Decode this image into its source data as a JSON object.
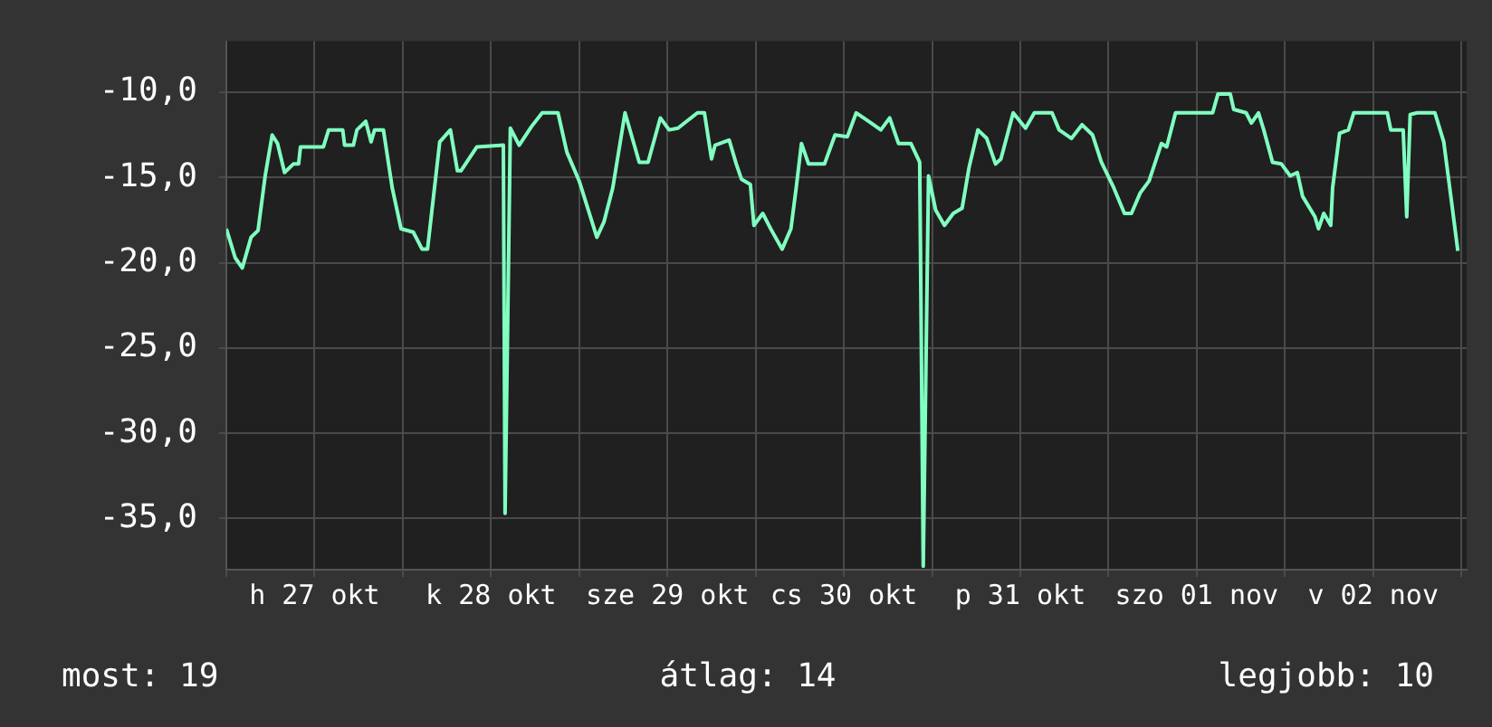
{
  "chart_data": {
    "type": "line",
    "xlim": [
      "--10-27T00:00",
      "--11-03T00:43"
    ],
    "ylim": [
      -38,
      -7
    ],
    "xticks": [
      {
        "value": "--10-27T00:00",
        "label": null
      },
      {
        "value": "--10-27T12:00",
        "label": "h 27 okt"
      },
      {
        "value": "--10-28T00:00",
        "label": null
      },
      {
        "value": "--10-28T12:00",
        "label": "k 28 okt"
      },
      {
        "value": "--10-29T00:00",
        "label": null
      },
      {
        "value": "--10-29T12:00",
        "label": "sze 29 okt"
      },
      {
        "value": "--10-30T00:00",
        "label": null
      },
      {
        "value": "--10-30T12:00",
        "label": "cs 30 okt"
      },
      {
        "value": "--10-31T00:00",
        "label": null
      },
      {
        "value": "--10-31T12:00",
        "label": "p 31 okt"
      },
      {
        "value": "--11-01T00:00",
        "label": null
      },
      {
        "value": "--11-01T12:00",
        "label": "szo 01 nov"
      },
      {
        "value": "--11-02T00:00",
        "label": null
      },
      {
        "value": "--11-02T12:00",
        "label": "v 02 nov"
      },
      {
        "value": "--11-03T00:00",
        "label": null
      }
    ],
    "yticks": [
      {
        "value": -35,
        "label": "-35,0"
      },
      {
        "value": -30,
        "label": "-30,0"
      },
      {
        "value": -25,
        "label": "-25,0"
      },
      {
        "value": -20,
        "label": "-20,0"
      },
      {
        "value": -15,
        "label": "-15,0"
      },
      {
        "value": -10,
        "label": "-10,0"
      }
    ],
    "grid": true,
    "legend": false,
    "marker": "none",
    "line_style": "solid",
    "series": [
      {
        "color": "#80ffc0",
        "x": [
          "--10-27T00:00",
          "--10-27T01:12",
          "--10-27T02:10",
          "--10-27T03:22",
          "--10-27T04:19",
          "--10-27T05:17",
          "--10-27T06:14",
          "--10-27T06:58",
          "--10-27T07:55",
          "--10-27T09:07",
          "--10-27T09:50",
          "--10-27T10:05",
          "--10-27T13:12",
          "--10-27T13:55",
          "--10-27T15:50",
          "--10-27T16:05",
          "--10-27T17:17",
          "--10-27T17:46",
          "--10-27T18:58",
          "--10-27T19:41",
          "--10-27T20:10",
          "--10-27T21:22",
          "--10-27T22:34",
          "--10-27T23:46",
          "--10-28T01:26",
          "--10-28T02:38",
          "--10-28T03:22",
          "--10-28T04:19",
          "--10-28T05:02",
          "--10-28T06:29",
          "--10-28T07:26",
          "--10-28T07:55",
          "--10-28T10:05",
          "--10-28T13:41",
          "--10-28T13:55",
          "--10-28T14:38",
          "--10-28T15:50",
          "--10-28T17:31",
          "--10-28T18:58",
          "--10-28T21:07",
          "--10-28T22:19",
          "--10-29T00:00",
          "--10-29T02:24",
          "--10-29T03:22",
          "--10-29T04:34",
          "--10-29T06:14",
          "--10-29T07:26",
          "--10-29T08:10",
          "--10-29T09:22",
          "--10-29T11:02",
          "--10-29T12:14",
          "--10-29T13:26",
          "--10-29T16:05",
          "--10-29T17:02",
          "--10-29T18:00",
          "--10-29T18:29",
          "--10-29T20:24",
          "--10-29T21:22",
          "--10-29T22:05",
          "--10-29T23:17",
          "--10-29T23:46",
          "--10-30T00:58",
          "--10-30T02:10",
          "--10-30T03:36",
          "--10-30T04:48",
          "--10-30T05:31",
          "--10-30T06:14",
          "--10-30T07:12",
          "--10-30T09:22",
          "--10-30T10:48",
          "--10-30T12:29",
          "--10-30T13:41",
          "--10-30T15:22",
          "--10-30T17:02",
          "--10-30T18:14",
          "--10-30T19:26",
          "--10-30T21:07",
          "--10-30T22:19",
          "--10-30T22:48",
          "--10-30T23:31",
          "--10-31T00:29",
          "--10-31T01:41",
          "--10-31T02:53",
          "--10-31T04:05",
          "--10-31T05:02",
          "--10-31T06:14",
          "--10-31T07:26",
          "--10-31T08:38",
          "--10-31T09:22",
          "--10-31T11:02",
          "--10-31T12:43",
          "--10-31T13:55",
          "--10-31T16:19",
          "--10-31T17:17",
          "--10-31T18:58",
          "--10-31T20:24",
          "--10-31T21:50",
          "--10-31T23:02",
          "--11-01T00:43",
          "--11-01T02:10",
          "--11-01T03:07",
          "--11-01T04:19",
          "--11-01T05:31",
          "--11-01T07:12",
          "--11-01T07:55",
          "--11-01T09:07",
          "--11-01T14:10",
          "--11-01T14:53",
          "--11-01T16:34",
          "--11-01T17:02",
          "--11-01T18:43",
          "--11-01T19:26",
          "--11-01T20:24",
          "--11-01T21:07",
          "--11-01T22:19",
          "--11-01T23:31",
          "--11-02T00:43",
          "--11-02T01:41",
          "--11-02T02:24",
          "--11-02T04:05",
          "--11-02T04:34",
          "--11-02T05:17",
          "--11-02T06:14",
          "--11-02T06:29",
          "--11-02T07:26",
          "--11-02T08:38",
          "--11-02T09:22",
          "--11-02T13:55",
          "--11-02T14:24",
          "--11-02T16:05",
          "--11-02T16:34",
          "--11-02T17:02",
          "--11-02T18:00",
          "--11-02T20:24",
          "--11-02T21:36",
          "--11-02T22:34",
          "--11-02T23:31"
        ],
        "values": [
          -18.0,
          -19.7,
          -20.3,
          -18.5,
          -18.1,
          -14.9,
          -12.5,
          -13.0,
          -14.7,
          -14.2,
          -14.2,
          -13.2,
          -13.2,
          -12.2,
          -12.2,
          -13.1,
          -13.1,
          -12.2,
          -11.7,
          -12.9,
          -12.2,
          -12.2,
          -15.6,
          -18.0,
          -18.2,
          -19.2,
          -19.2,
          -15.6,
          -12.9,
          -12.2,
          -14.6,
          -14.6,
          -13.2,
          -13.1,
          -34.7,
          -12.1,
          -13.1,
          -12.0,
          -11.2,
          -11.2,
          -13.5,
          -15.2,
          -18.5,
          -17.6,
          -15.6,
          -11.2,
          -13.0,
          -14.1,
          -14.1,
          -11.5,
          -12.2,
          -12.1,
          -11.2,
          -11.2,
          -13.9,
          -13.1,
          -12.8,
          -14.2,
          -15.1,
          -15.4,
          -17.8,
          -17.1,
          -18.1,
          -19.2,
          -18.0,
          -15.6,
          -13.0,
          -14.2,
          -14.2,
          -12.5,
          -12.6,
          -11.2,
          -11.7,
          -12.2,
          -11.5,
          -13.0,
          -13.0,
          -14.1,
          -37.8,
          -14.9,
          -16.9,
          -17.8,
          -17.1,
          -16.8,
          -14.4,
          -12.2,
          -12.7,
          -14.2,
          -13.9,
          -11.2,
          -12.1,
          -11.2,
          -11.2,
          -12.2,
          -12.7,
          -11.9,
          -12.5,
          -14.1,
          -15.6,
          -17.1,
          -17.1,
          -15.9,
          -15.2,
          -13.0,
          -13.2,
          -11.2,
          -11.2,
          -10.1,
          -10.1,
          -11.0,
          -11.2,
          -11.8,
          -11.2,
          -12.2,
          -14.1,
          -14.2,
          -14.9,
          -14.7,
          -16.1,
          -17.3,
          -18.0,
          -17.1,
          -17.8,
          -15.6,
          -12.4,
          -12.2,
          -11.2,
          -11.2,
          -12.2,
          -12.2,
          -17.3,
          -11.3,
          -11.2,
          -11.2,
          -12.9,
          -16.1,
          -19.3
        ]
      }
    ],
    "annotations": [
      "most: 19",
      "átlag: 14",
      "legjobb: 10"
    ]
  }
}
